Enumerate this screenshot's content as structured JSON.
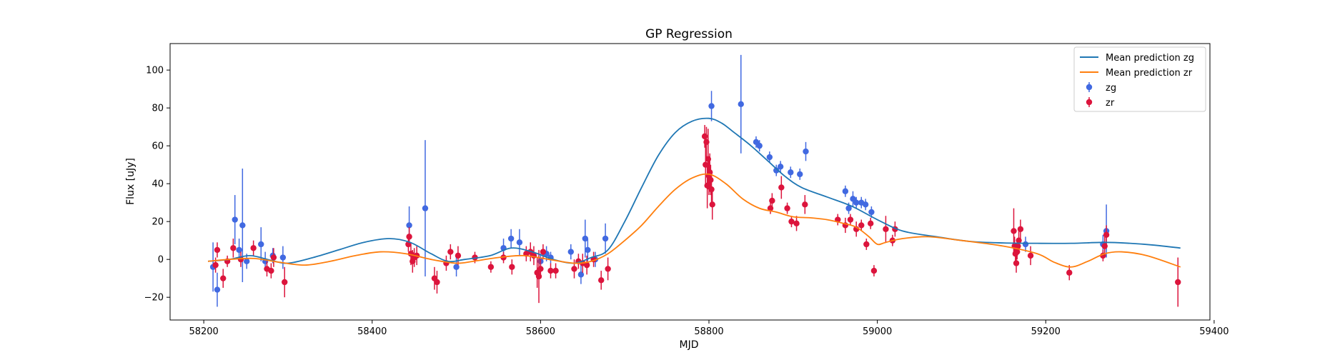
{
  "chart_data": {
    "type": "scatter",
    "title": "GP Regression",
    "xlabel": "MJD",
    "ylabel": "Flux [uJy]",
    "xlim": [
      58160,
      59395
    ],
    "ylim": [
      -32,
      114
    ],
    "xticks": [
      58200,
      58400,
      58600,
      58800,
      59000,
      59200,
      59400
    ],
    "yticks": [
      -20,
      0,
      20,
      40,
      60,
      80,
      100
    ],
    "grid": false,
    "legend_position": "top-right",
    "lines": [
      {
        "name": "Mean prediction zg",
        "color": "#1f77b4",
        "x": [
          58205,
          58230,
          58255,
          58280,
          58300,
          58330,
          58360,
          58390,
          58420,
          58445,
          58470,
          58490,
          58510,
          58540,
          58565,
          58590,
          58615,
          58640,
          58660,
          58680,
          58700,
          58720,
          58740,
          58760,
          58780,
          58800,
          58815,
          58830,
          58850,
          58870,
          58890,
          58910,
          58940,
          58970,
          59000,
          59030,
          59070,
          59110,
          59150,
          59190,
          59230,
          59270,
          59300,
          59330,
          59360
        ],
        "y": [
          -1,
          0,
          2,
          -0.5,
          -2,
          1,
          5,
          9,
          11,
          9,
          3,
          -1,
          0,
          2,
          6,
          4,
          0,
          -2,
          1,
          5,
          20,
          38,
          55,
          67,
          73,
          74.5,
          72,
          67,
          60,
          52,
          44,
          38,
          33,
          28,
          21,
          15,
          12,
          9.5,
          8.7,
          8.5,
          8.5,
          9,
          8.5,
          7.5,
          6
        ]
      },
      {
        "name": "Mean prediction zr",
        "color": "#ff7f0e",
        "x": [
          58205,
          58230,
          58260,
          58290,
          58320,
          58350,
          58380,
          58410,
          58440,
          58470,
          58500,
          58520,
          58550,
          58580,
          58610,
          58640,
          58660,
          58680,
          58700,
          58720,
          58740,
          58760,
          58780,
          58800,
          58820,
          58840,
          58860,
          58880,
          58900,
          58920,
          58940,
          58960,
          58975,
          58990,
          59000,
          59010,
          59030,
          59060,
          59100,
          59150,
          59190,
          59210,
          59230,
          59250,
          59270,
          59290,
          59320,
          59360
        ],
        "y": [
          -1,
          0,
          0.5,
          -1.5,
          -3,
          -1,
          2,
          4,
          3,
          0,
          -2,
          -1,
          1,
          2,
          0,
          -2,
          -1,
          3,
          10,
          18,
          28,
          37,
          43,
          45,
          40,
          32,
          27,
          25,
          22.5,
          22,
          21,
          19,
          17,
          12,
          8,
          9,
          11,
          12,
          10,
          7,
          3,
          -1.5,
          -4,
          -1,
          3,
          4,
          2,
          -4
        ]
      }
    ],
    "series": [
      {
        "name": "zg",
        "color": "#4169e1",
        "points": [
          {
            "x": 58211,
            "y": -4,
            "err": 13
          },
          {
            "x": 58216,
            "y": -16,
            "err": 9
          },
          {
            "x": 58237,
            "y": 21,
            "err": 13
          },
          {
            "x": 58242,
            "y": 5,
            "err": 6
          },
          {
            "x": 58246,
            "y": 18,
            "err": 30
          },
          {
            "x": 58251,
            "y": -1,
            "err": 4
          },
          {
            "x": 58268,
            "y": 8,
            "err": 9
          },
          {
            "x": 58273,
            "y": -1,
            "err": 5
          },
          {
            "x": 58282,
            "y": 2,
            "err": 4
          },
          {
            "x": 58294,
            "y": 1,
            "err": 6
          },
          {
            "x": 58444,
            "y": 18,
            "err": 10
          },
          {
            "x": 58463,
            "y": 27,
            "err": 36
          },
          {
            "x": 58500,
            "y": -4,
            "err": 5
          },
          {
            "x": 58556,
            "y": 6,
            "err": 5
          },
          {
            "x": 58565,
            "y": 11,
            "err": 5
          },
          {
            "x": 58575,
            "y": 9,
            "err": 7
          },
          {
            "x": 58600,
            "y": -1,
            "err": 4
          },
          {
            "x": 58607,
            "y": 3,
            "err": 4
          },
          {
            "x": 58612,
            "y": 1,
            "err": 3
          },
          {
            "x": 58636,
            "y": 4,
            "err": 4
          },
          {
            "x": 58648,
            "y": -8,
            "err": 5
          },
          {
            "x": 58653,
            "y": 11,
            "err": 10
          },
          {
            "x": 58656,
            "y": 5,
            "err": 6
          },
          {
            "x": 58665,
            "y": 0,
            "err": 4
          },
          {
            "x": 58677,
            "y": 11,
            "err": 8
          },
          {
            "x": 58803,
            "y": 81,
            "err": 8
          },
          {
            "x": 58838,
            "y": 82,
            "err": 26
          },
          {
            "x": 58856,
            "y": 62,
            "err": 3
          },
          {
            "x": 58860,
            "y": 60,
            "err": 3
          },
          {
            "x": 58872,
            "y": 54,
            "err": 3
          },
          {
            "x": 58880,
            "y": 47,
            "err": 3
          },
          {
            "x": 58885,
            "y": 49,
            "err": 3
          },
          {
            "x": 58897,
            "y": 46,
            "err": 3
          },
          {
            "x": 58908,
            "y": 45,
            "err": 3
          },
          {
            "x": 58915,
            "y": 57,
            "err": 5
          },
          {
            "x": 58962,
            "y": 36,
            "err": 3
          },
          {
            "x": 58966,
            "y": 27,
            "err": 3
          },
          {
            "x": 58971,
            "y": 32,
            "err": 4
          },
          {
            "x": 58975,
            "y": 30,
            "err": 3
          },
          {
            "x": 58981,
            "y": 30,
            "err": 3
          },
          {
            "x": 58986,
            "y": 29,
            "err": 3
          },
          {
            "x": 58993,
            "y": 25,
            "err": 3
          },
          {
            "x": 59176,
            "y": 8,
            "err": 4
          },
          {
            "x": 59268,
            "y": 8,
            "err": 5
          },
          {
            "x": 59272,
            "y": 15,
            "err": 14
          }
        ]
      },
      {
        "name": "zr",
        "color": "#dc143c",
        "points": [
          {
            "x": 58214,
            "y": -3,
            "err": 4
          },
          {
            "x": 58216,
            "y": 5,
            "err": 4
          },
          {
            "x": 58223,
            "y": -10,
            "err": 5
          },
          {
            "x": 58228,
            "y": -1,
            "err": 3
          },
          {
            "x": 58235,
            "y": 6,
            "err": 5
          },
          {
            "x": 58244,
            "y": 0,
            "err": 4
          },
          {
            "x": 58259,
            "y": 6,
            "err": 4
          },
          {
            "x": 58275,
            "y": -5,
            "err": 4
          },
          {
            "x": 58280,
            "y": -6,
            "err": 4
          },
          {
            "x": 58283,
            "y": 1,
            "err": 5
          },
          {
            "x": 58296,
            "y": -12,
            "err": 8
          },
          {
            "x": 58443,
            "y": 8,
            "err": 4
          },
          {
            "x": 58444,
            "y": 12,
            "err": 5
          },
          {
            "x": 58446,
            "y": 3,
            "err": 6
          },
          {
            "x": 58448,
            "y": -1,
            "err": 6
          },
          {
            "x": 58450,
            "y": 1,
            "err": 5
          },
          {
            "x": 58453,
            "y": 2,
            "err": 5
          },
          {
            "x": 58474,
            "y": -10,
            "err": 6
          },
          {
            "x": 58477,
            "y": -12,
            "err": 6
          },
          {
            "x": 58488,
            "y": -2,
            "err": 4
          },
          {
            "x": 58493,
            "y": 4,
            "err": 4
          },
          {
            "x": 58502,
            "y": 2,
            "err": 5
          },
          {
            "x": 58522,
            "y": 1,
            "err": 3
          },
          {
            "x": 58541,
            "y": -4,
            "err": 3
          },
          {
            "x": 58556,
            "y": 1,
            "err": 3
          },
          {
            "x": 58566,
            "y": -4,
            "err": 4
          },
          {
            "x": 58583,
            "y": 3,
            "err": 4
          },
          {
            "x": 58588,
            "y": 4,
            "err": 5
          },
          {
            "x": 58592,
            "y": 2,
            "err": 5
          },
          {
            "x": 58596,
            "y": -7,
            "err": 8
          },
          {
            "x": 58598,
            "y": -9,
            "err": 14
          },
          {
            "x": 58600,
            "y": -5,
            "err": 5
          },
          {
            "x": 58603,
            "y": 4,
            "err": 4
          },
          {
            "x": 58612,
            "y": -6,
            "err": 4
          },
          {
            "x": 58618,
            "y": -6,
            "err": 4
          },
          {
            "x": 58640,
            "y": -5,
            "err": 5
          },
          {
            "x": 58645,
            "y": -1,
            "err": 4
          },
          {
            "x": 58650,
            "y": -2,
            "err": 5
          },
          {
            "x": 58655,
            "y": -3,
            "err": 5
          },
          {
            "x": 58663,
            "y": 0,
            "err": 4
          },
          {
            "x": 58672,
            "y": -11,
            "err": 5
          },
          {
            "x": 58680,
            "y": -5,
            "err": 6
          },
          {
            "x": 58795,
            "y": 65,
            "err": 6
          },
          {
            "x": 58796,
            "y": 50,
            "err": 12
          },
          {
            "x": 58797,
            "y": 62,
            "err": 8
          },
          {
            "x": 58798,
            "y": 39,
            "err": 12
          },
          {
            "x": 58799,
            "y": 53,
            "err": 16
          },
          {
            "x": 58800,
            "y": 44,
            "err": 10
          },
          {
            "x": 58801,
            "y": 46,
            "err": 10
          },
          {
            "x": 58802,
            "y": 42,
            "err": 8
          },
          {
            "x": 58803,
            "y": 37,
            "err": 8
          },
          {
            "x": 58804,
            "y": 29,
            "err": 8
          },
          {
            "x": 58873,
            "y": 27,
            "err": 3
          },
          {
            "x": 58875,
            "y": 31,
            "err": 4
          },
          {
            "x": 58886,
            "y": 38,
            "err": 6
          },
          {
            "x": 58893,
            "y": 27,
            "err": 3
          },
          {
            "x": 58898,
            "y": 20,
            "err": 3
          },
          {
            "x": 58904,
            "y": 19,
            "err": 4
          },
          {
            "x": 58914,
            "y": 29,
            "err": 5
          },
          {
            "x": 58953,
            "y": 21,
            "err": 3
          },
          {
            "x": 58962,
            "y": 18,
            "err": 4
          },
          {
            "x": 58968,
            "y": 21,
            "err": 3
          },
          {
            "x": 58975,
            "y": 16,
            "err": 4
          },
          {
            "x": 58981,
            "y": 18,
            "err": 3
          },
          {
            "x": 58987,
            "y": 8,
            "err": 3
          },
          {
            "x": 58992,
            "y": 19,
            "err": 3
          },
          {
            "x": 58996,
            "y": -6,
            "err": 3
          },
          {
            "x": 59010,
            "y": 16,
            "err": 7
          },
          {
            "x": 59018,
            "y": 10,
            "err": 3
          },
          {
            "x": 59021,
            "y": 16,
            "err": 4
          },
          {
            "x": 59162,
            "y": 15,
            "err": 12
          },
          {
            "x": 59163,
            "y": 7,
            "err": 5
          },
          {
            "x": 59164,
            "y": 3,
            "err": 5
          },
          {
            "x": 59165,
            "y": -2,
            "err": 5
          },
          {
            "x": 59166,
            "y": 4,
            "err": 4
          },
          {
            "x": 59167,
            "y": 7,
            "err": 4
          },
          {
            "x": 59168,
            "y": 10,
            "err": 5
          },
          {
            "x": 59170,
            "y": 16,
            "err": 5
          },
          {
            "x": 59182,
            "y": 2,
            "err": 5
          },
          {
            "x": 59228,
            "y": -7,
            "err": 4
          },
          {
            "x": 59268,
            "y": 2,
            "err": 3
          },
          {
            "x": 59270,
            "y": 7,
            "err": 5
          },
          {
            "x": 59272,
            "y": 13,
            "err": 5
          },
          {
            "x": 59357,
            "y": -12,
            "err": 13
          }
        ]
      }
    ]
  }
}
